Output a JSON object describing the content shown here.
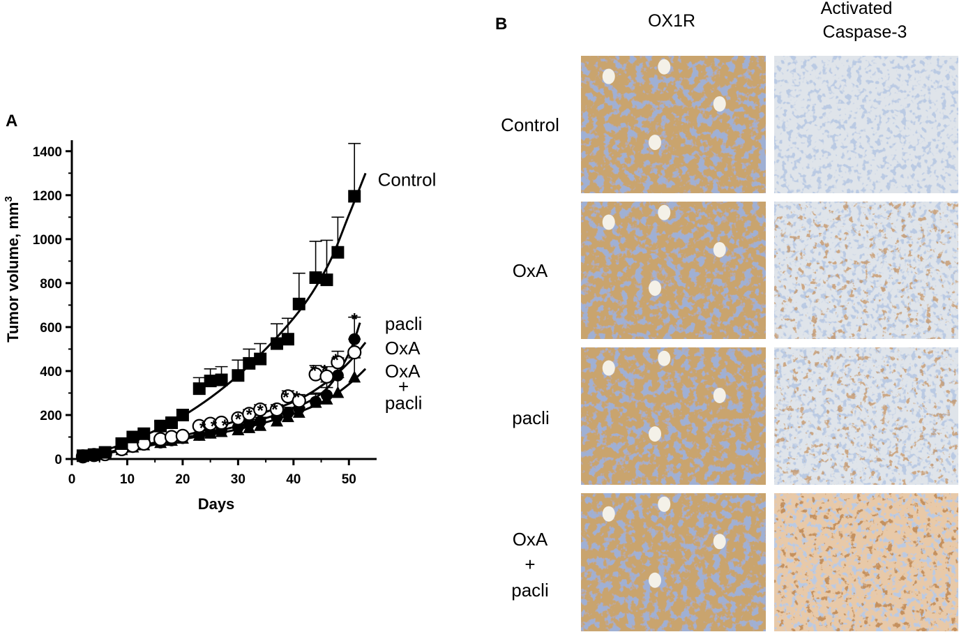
{
  "figure": {
    "panel_a_letter": "A",
    "panel_b_letter": "B",
    "panel_b": {
      "columns": [
        "OX1R",
        "Activated",
        "Caspase-3"
      ],
      "rows": [
        "Control",
        "OxA",
        "pacli",
        "OxA",
        "+",
        "pacli"
      ],
      "tiles": [
        {
          "stain": "ox1r",
          "color": "#c9a46e",
          "cell_color": "#5a6fa8"
        },
        {
          "stain": "caspase",
          "color": "#dfe4ea",
          "cell_color": "#7f96c4",
          "brown": "#8a4a1c"
        }
      ]
    }
  },
  "chart_data": {
    "type": "line",
    "title": "",
    "xlabel": "Days",
    "ylabel": "Tumor volume, mm",
    "ylabel_superscript": "3",
    "xlim": [
      0,
      55
    ],
    "ylim": [
      0,
      1450
    ],
    "xticks": [
      0,
      10,
      20,
      30,
      40,
      50
    ],
    "yticks": [
      0,
      200,
      400,
      600,
      800,
      1000,
      1200,
      1400
    ],
    "grid": false,
    "legend": "inline-right",
    "series": [
      {
        "name": "Control",
        "marker": "filled-square",
        "x": [
          2,
          4,
          6,
          9,
          11,
          13,
          16,
          18,
          20,
          23,
          25,
          27,
          30,
          32,
          34,
          37,
          39,
          41,
          44,
          46,
          48,
          51
        ],
        "y": [
          15,
          20,
          30,
          70,
          100,
          115,
          150,
          165,
          200,
          320,
          355,
          360,
          380,
          435,
          455,
          525,
          545,
          705,
          825,
          815,
          940,
          1195
        ],
        "err": [
          5,
          5,
          8,
          12,
          15,
          18,
          20,
          22,
          25,
          50,
          55,
          60,
          70,
          65,
          70,
          90,
          95,
          140,
          165,
          180,
          160,
          240
        ],
        "fit": [
          [
            2,
            12
          ],
          [
            10,
            75
          ],
          [
            20,
            195
          ],
          [
            30,
            380
          ],
          [
            40,
            640
          ],
          [
            46,
            870
          ],
          [
            50,
            1110
          ],
          [
            53,
            1300
          ]
        ]
      },
      {
        "name": "pacli",
        "marker": "filled-circle",
        "x": [
          2,
          4,
          6,
          9,
          11,
          13,
          16,
          18,
          20,
          23,
          25,
          27,
          30,
          32,
          34,
          37,
          39,
          41,
          44,
          46,
          48,
          51
        ],
        "y": [
          12,
          15,
          20,
          40,
          55,
          65,
          75,
          85,
          95,
          110,
          120,
          130,
          145,
          160,
          170,
          190,
          210,
          230,
          260,
          290,
          380,
          545
        ],
        "err": [
          4,
          4,
          5,
          8,
          9,
          10,
          10,
          12,
          12,
          14,
          15,
          15,
          18,
          20,
          20,
          22,
          25,
          25,
          40,
          60,
          80,
          100
        ],
        "fit": [
          [
            2,
            10
          ],
          [
            10,
            45
          ],
          [
            20,
            95
          ],
          [
            30,
            150
          ],
          [
            40,
            230
          ],
          [
            46,
            320
          ],
          [
            50,
            480
          ],
          [
            52,
            620
          ]
        ]
      },
      {
        "name": "OxA",
        "marker": "open-circle",
        "x": [
          2,
          4,
          6,
          9,
          11,
          13,
          16,
          18,
          20,
          23,
          25,
          27,
          30,
          32,
          34,
          37,
          39,
          41,
          44,
          46,
          48,
          51
        ],
        "y": [
          12,
          18,
          22,
          45,
          60,
          70,
          90,
          100,
          105,
          150,
          160,
          165,
          185,
          205,
          225,
          225,
          285,
          265,
          385,
          375,
          440,
          485
        ],
        "err": [
          4,
          4,
          5,
          8,
          9,
          10,
          10,
          12,
          12,
          15,
          15,
          16,
          18,
          20,
          22,
          22,
          25,
          28,
          40,
          45,
          50,
          60
        ],
        "fit": [
          [
            2,
            12
          ],
          [
            10,
            48
          ],
          [
            20,
            105
          ],
          [
            30,
            175
          ],
          [
            40,
            260
          ],
          [
            46,
            350
          ],
          [
            50,
            440
          ],
          [
            53,
            530
          ]
        ]
      },
      {
        "name": "OxA + pacli",
        "marker": "filled-triangle",
        "x": [
          2,
          4,
          6,
          9,
          11,
          13,
          16,
          18,
          20,
          23,
          25,
          27,
          30,
          32,
          34,
          37,
          39,
          41,
          44,
          46,
          48,
          51
        ],
        "y": [
          10,
          14,
          18,
          40,
          52,
          62,
          72,
          82,
          92,
          105,
          115,
          122,
          130,
          140,
          150,
          170,
          190,
          210,
          255,
          270,
          300,
          370
        ],
        "err": [
          4,
          4,
          5,
          7,
          8,
          9,
          10,
          10,
          12,
          12,
          14,
          14,
          15,
          16,
          18,
          20,
          22,
          25,
          40,
          55,
          70,
          90
        ],
        "fit": [
          [
            2,
            10
          ],
          [
            10,
            42
          ],
          [
            20,
            90
          ],
          [
            30,
            135
          ],
          [
            40,
            205
          ],
          [
            46,
            270
          ],
          [
            50,
            340
          ],
          [
            53,
            410
          ]
        ]
      }
    ],
    "series_labels": [
      {
        "text": "Control",
        "x": 55.2,
        "y": 1270
      },
      {
        "text": "pacli",
        "x": 56.5,
        "y": 615
      },
      {
        "text": "OxA",
        "x": 56.5,
        "y": 505
      },
      {
        "text": "OxA",
        "x": 56.5,
        "y": 400
      },
      {
        "text": "+",
        "x": 58.9,
        "y": 330
      },
      {
        "text": "pacli",
        "x": 56.5,
        "y": 255
      }
    ],
    "annotations": [
      {
        "text": "*",
        "x": 23.6,
        "y": 160
      },
      {
        "text": "*",
        "x": 25.6,
        "y": 168
      },
      {
        "text": "*",
        "x": 27.6,
        "y": 172
      },
      {
        "text": "*",
        "x": 30.0,
        "y": 200
      },
      {
        "text": "*",
        "x": 32.0,
        "y": 220
      },
      {
        "text": "*",
        "x": 34.0,
        "y": 240
      },
      {
        "text": "*",
        "x": 36.6,
        "y": 245
      },
      {
        "text": "*",
        "x": 38.6,
        "y": 300
      },
      {
        "text": "*",
        "x": 40.6,
        "y": 300
      },
      {
        "text": "*",
        "x": 43.6,
        "y": 420
      },
      {
        "text": "*",
        "x": 45.6,
        "y": 420
      },
      {
        "text": "*",
        "x": 47.6,
        "y": 470
      },
      {
        "text": "*",
        "x": 51.0,
        "y": 655
      }
    ]
  }
}
